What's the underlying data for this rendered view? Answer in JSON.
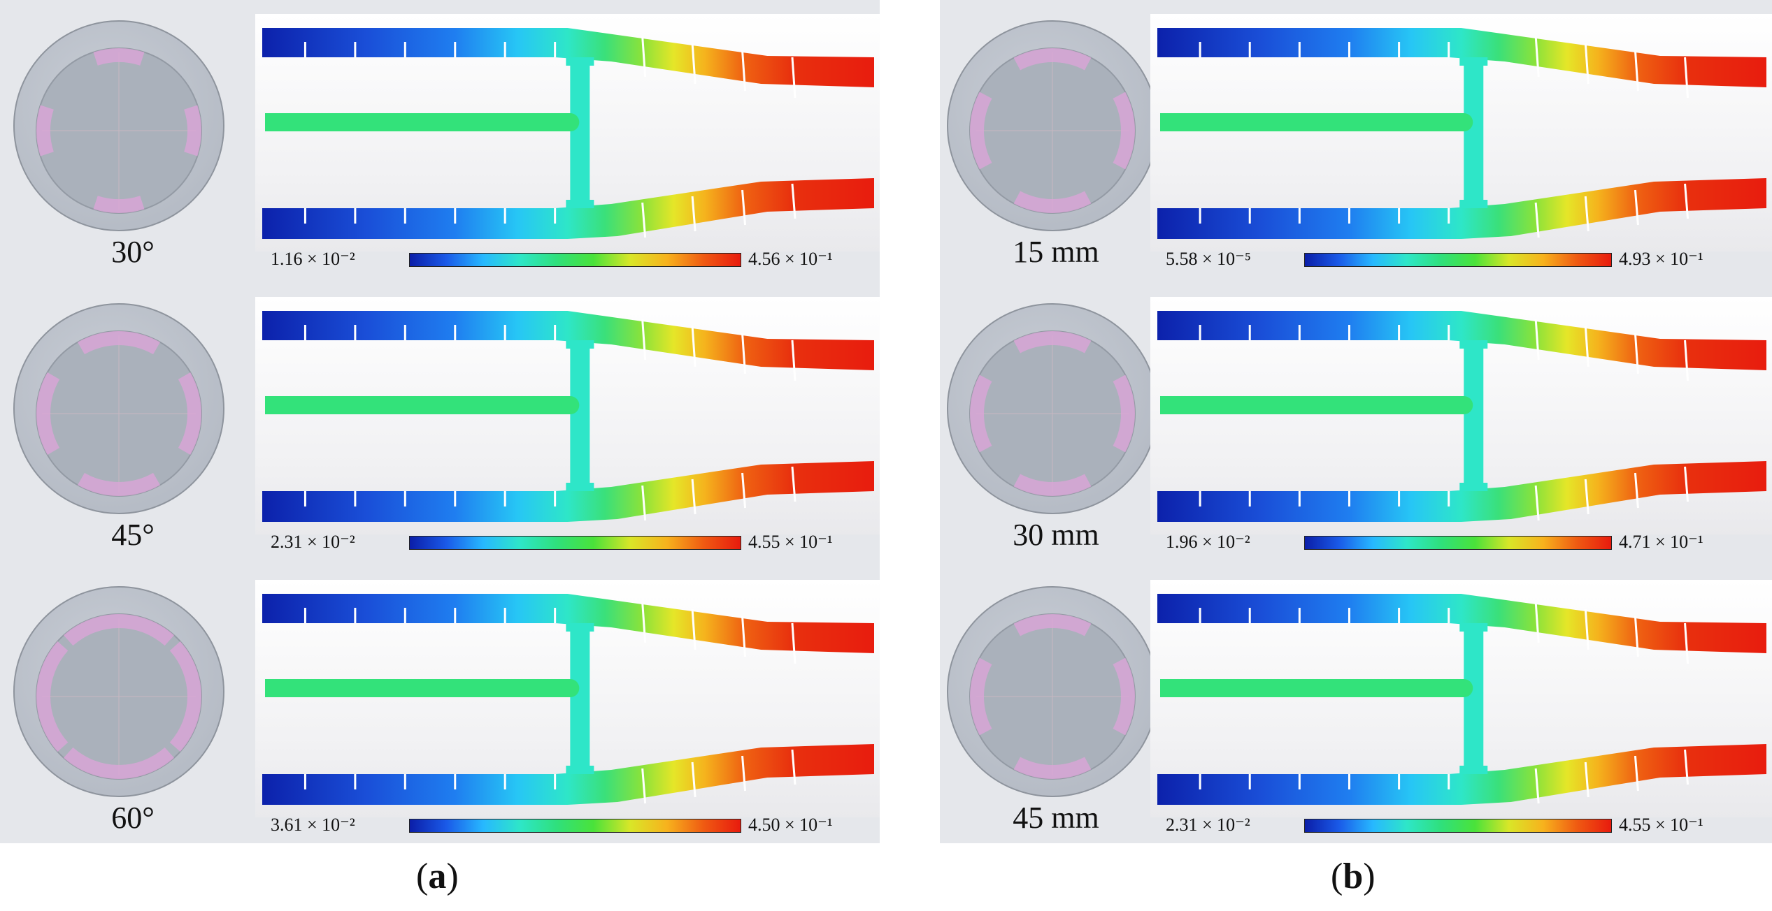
{
  "panels": {
    "a": {
      "caption_open": "(",
      "caption_letter": "a",
      "caption_close": ")",
      "rows": [
        {
          "label": "30°",
          "scale_min": "1.16 × 10⁻²",
          "scale_max": "4.56 × 10⁻¹"
        },
        {
          "label": "45°",
          "scale_min": "2.31 × 10⁻²",
          "scale_max": "4.55 × 10⁻¹"
        },
        {
          "label": "60°",
          "scale_min": "3.61 × 10⁻²",
          "scale_max": "4.50 × 10⁻¹"
        }
      ]
    },
    "b": {
      "caption_open": "(",
      "caption_letter": "b",
      "caption_close": ")",
      "rows": [
        {
          "label": "15 mm",
          "scale_min": "5.58 × 10⁻⁵",
          "scale_max": "4.93 × 10⁻¹"
        },
        {
          "label": "30 mm",
          "scale_min": "1.96 × 10⁻²",
          "scale_max": "4.71 × 10⁻¹"
        },
        {
          "label": "45 mm",
          "scale_min": "2.31 × 10⁻²",
          "scale_max": "4.55 × 10⁻¹"
        }
      ]
    }
  },
  "colors": {
    "panel_background": "#e5e7eb",
    "model_disk": "#b4bac4",
    "slot_highlight": "#d8a6d6",
    "colormap": [
      "#0b1ea8",
      "#1a5ae8",
      "#27b8ff",
      "#2ee6c8",
      "#2fe07c",
      "#4ae23a",
      "#d9e628",
      "#f7b21d",
      "#ef5a12",
      "#e81b0e"
    ]
  }
}
